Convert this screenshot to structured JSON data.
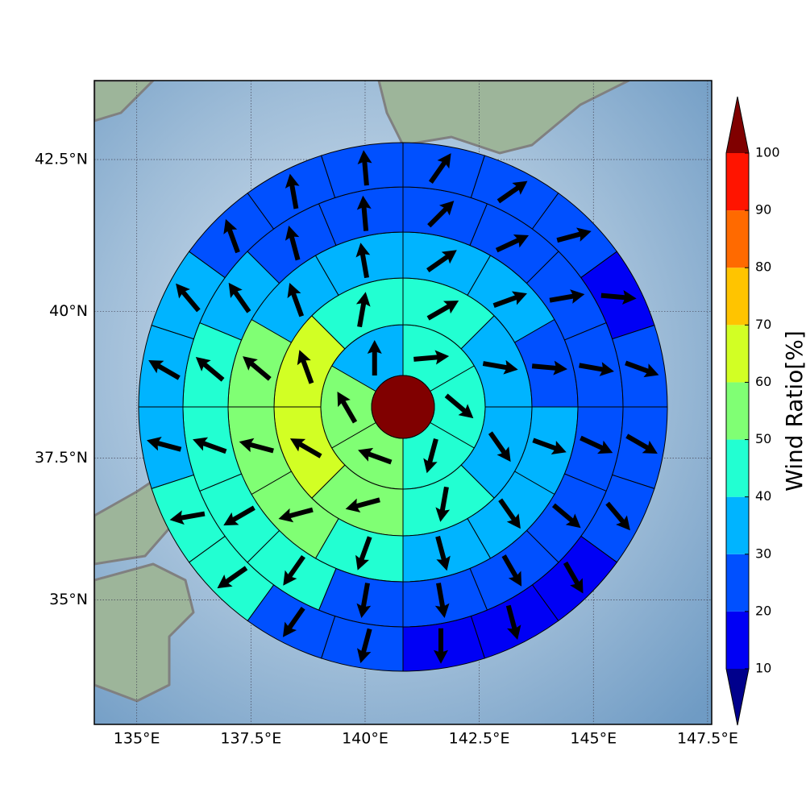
{
  "chart_data": {
    "type": "polar_sector_map",
    "projection": "mercator",
    "xlim": [
      134.07,
      147.59
    ],
    "ylim": [
      32.74,
      43.76
    ],
    "xticks": [
      {
        "value": 135,
        "label": "135°E"
      },
      {
        "value": 137.5,
        "label": "137.5°E"
      },
      {
        "value": 140,
        "label": "140°E"
      },
      {
        "value": 142.5,
        "label": "142.5°E"
      },
      {
        "value": 145,
        "label": "145°E"
      },
      {
        "value": 147.5,
        "label": "147.5°E"
      }
    ],
    "yticks": [
      {
        "value": 35,
        "label": "35°N"
      },
      {
        "value": 37.5,
        "label": "37.5°N"
      },
      {
        "value": 40,
        "label": "40°N"
      },
      {
        "value": 42.5,
        "label": "42.5°N"
      }
    ],
    "grid": true,
    "center_value": 105,
    "rings": [
      {
        "values": [
          45,
          45,
          42,
          55,
          55,
          35
        ],
        "directions": [
          85,
          130,
          195,
          290,
          330,
          0
        ]
      },
      {
        "values": [
          42,
          35,
          35,
          45,
          55,
          65,
          62,
          45
        ],
        "directions": [
          60,
          100,
          145,
          190,
          255,
          300,
          340,
          10
        ]
      },
      {
        "values": [
          35,
          32,
          25,
          35,
          32,
          33,
          48,
          55,
          55,
          52,
          38,
          35
        ],
        "directions": [
          55,
          70,
          95,
          110,
          145,
          165,
          200,
          255,
          285,
          310,
          340,
          350
        ]
      },
      {
        "values": [
          25,
          25,
          22,
          22,
          22,
          25,
          22,
          25,
          25,
          45,
          42,
          45,
          45,
          35,
          25,
          25
        ],
        "directions": [
          45,
          65,
          80,
          100,
          115,
          130,
          150,
          170,
          190,
          215,
          240,
          290,
          310,
          325,
          345,
          355
        ]
      },
      {
        "values": [
          25,
          25,
          22,
          15,
          22,
          22,
          22,
          15,
          15,
          15,
          22,
          25,
          42,
          45,
          35,
          35,
          35,
          25,
          25,
          25
        ],
        "directions": [
          35,
          55,
          75,
          95,
          110,
          120,
          140,
          150,
          165,
          180,
          195,
          215,
          235,
          260,
          285,
          300,
          320,
          340,
          350,
          355
        ]
      }
    ],
    "colorbar": {
      "label": "Wind Ratio[%]",
      "ticks": [
        10,
        20,
        30,
        40,
        50,
        60,
        70,
        80,
        90,
        100
      ],
      "colors": [
        "#0000f5",
        "#0050ff",
        "#00b4ff",
        "#22ffd2",
        "#80ff74",
        "#d2ff24",
        "#ffc400",
        "#ff6a00",
        "#ff1400"
      ],
      "under_color": "#00008c",
      "over_color": "#800000"
    }
  }
}
